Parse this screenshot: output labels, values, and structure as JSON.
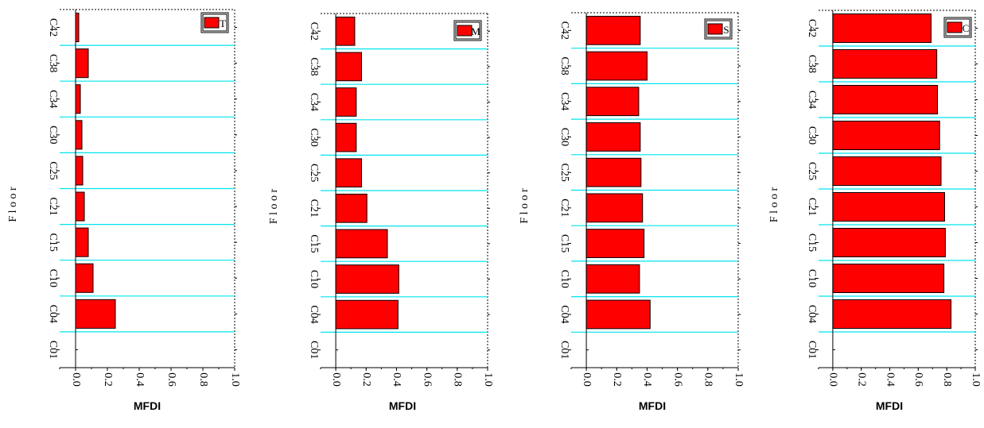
{
  "chart_data": [
    {
      "type": "bar",
      "orientation": "horizontal",
      "categories": [
        "C01",
        "C04",
        "C10",
        "C15",
        "C21",
        "C25",
        "C30",
        "C34",
        "C38",
        "C42"
      ],
      "series": [
        {
          "name": "T",
          "values": [
            0.0,
            0.25,
            0.11,
            0.08,
            0.055,
            0.045,
            0.04,
            0.03,
            0.08,
            0.02
          ]
        }
      ],
      "xlabel": "MFDI",
      "ylabel": "F l o o r",
      "xlim": [
        -0.1,
        1.0
      ],
      "xticks": [
        "0.0",
        "0.2",
        "0.4",
        "0.6",
        "0.8",
        "1.0"
      ],
      "bar_color": "#ff0000",
      "grid_color": "#00e5ee",
      "legend": "top-right"
    },
    {
      "type": "bar",
      "orientation": "horizontal",
      "categories": [
        "C01",
        "C04",
        "C10",
        "C15",
        "C21",
        "C25",
        "C30",
        "C34",
        "C38",
        "C42"
      ],
      "series": [
        {
          "name": "M",
          "values": [
            0.0,
            0.41,
            0.415,
            0.34,
            0.205,
            0.17,
            0.135,
            0.135,
            0.17,
            0.125
          ]
        }
      ],
      "xlabel": "MFDI",
      "ylabel": "F l o o r",
      "xlim": [
        -0.1,
        1.0
      ],
      "xticks": [
        "0.0",
        "0.2",
        "0.4",
        "0.6",
        "0.8",
        "1.0"
      ],
      "bar_color": "#ff0000",
      "grid_color": "#00e5ee",
      "legend": "top-right"
    },
    {
      "type": "bar",
      "orientation": "horizontal",
      "categories": [
        "C01",
        "C04",
        "C10",
        "C15",
        "C21",
        "C25",
        "C30",
        "C34",
        "C38",
        "C42"
      ],
      "series": [
        {
          "name": "S",
          "values": [
            0.0,
            0.42,
            0.35,
            0.38,
            0.37,
            0.36,
            0.355,
            0.345,
            0.4,
            0.355
          ]
        }
      ],
      "xlabel": "MFDI",
      "ylabel": "F l o o r",
      "xlim": [
        -0.1,
        1.0
      ],
      "xticks": [
        "0.0",
        "0.2",
        "0.4",
        "0.6",
        "0.8",
        "1.0"
      ],
      "bar_color": "#ff0000",
      "grid_color": "#00e5ee",
      "legend": "top-right"
    },
    {
      "type": "bar",
      "orientation": "horizontal",
      "categories": [
        "C01",
        "C04",
        "C10",
        "C15",
        "C21",
        "C25",
        "C30",
        "C34",
        "C38",
        "C42"
      ],
      "series": [
        {
          "name": "C",
          "values": [
            0.0,
            0.83,
            0.78,
            0.79,
            0.785,
            0.76,
            0.75,
            0.735,
            0.73,
            0.69
          ]
        }
      ],
      "xlabel": "MFDI",
      "ylabel": "F l o o r",
      "xlim": [
        -0.1,
        1.0
      ],
      "xticks": [
        "0.0",
        "0.2",
        "0.4",
        "0.6",
        "0.8",
        "1.0"
      ],
      "bar_color": "#ff0000",
      "grid_color": "#00e5ee",
      "legend": "top-right"
    }
  ]
}
